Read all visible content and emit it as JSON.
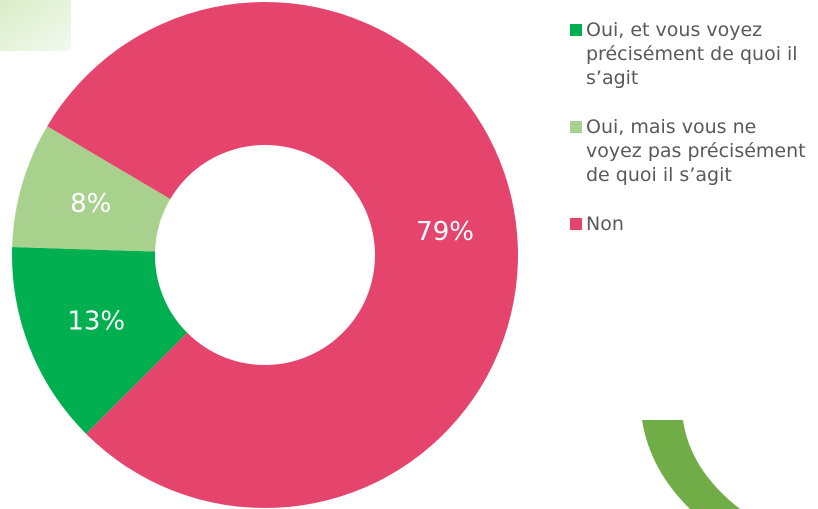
{
  "chart_data": {
    "type": "donut",
    "categories": [
      "Oui, et vous voyez précisément de quoi il s’agit",
      "Oui, mais vous ne voyez pas précisément de quoi il s’agit",
      "Non"
    ],
    "values": [
      13,
      8,
      79
    ],
    "value_labels": [
      "13%",
      "8%",
      "79%"
    ],
    "colors": [
      "#00b050",
      "#a9d18e",
      "#e5446d"
    ],
    "legend": "right"
  }
}
